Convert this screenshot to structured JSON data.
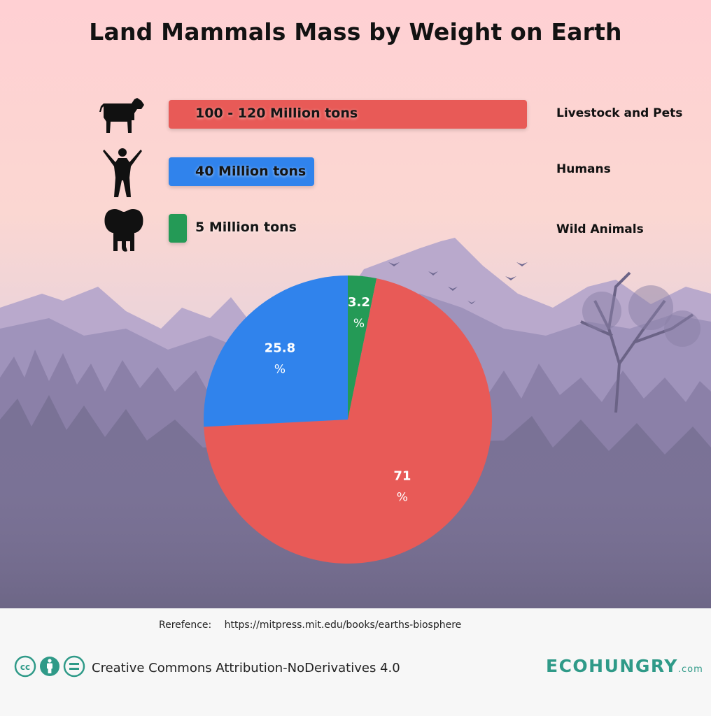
{
  "title": "Land Mammals Mass by Weight on Earth",
  "colors": {
    "livestock": "#E85A57",
    "humans": "#3083EC",
    "wild": "#249A56",
    "brand": "#2F9A88"
  },
  "bars": [
    {
      "name": "Livestock and Pets",
      "text": "100 - 120 Million tons",
      "icon": "cow-icon",
      "color": "#E85A57"
    },
    {
      "name": "Humans",
      "text": "40 Million tons",
      "icon": "person-icon",
      "color": "#3083EC"
    },
    {
      "name": "Wild Animals",
      "text": "5 Million tons",
      "icon": "elephant-icon",
      "color": "#249A56"
    }
  ],
  "chart_data": [
    {
      "type": "bar",
      "orientation": "horizontal",
      "categories": [
        "Livestock and Pets",
        "Humans",
        "Wild Animals"
      ],
      "values": [
        120,
        40,
        5
      ],
      "value_labels": [
        "100 - 120 Million tons",
        "40 Million tons",
        "5 Million tons"
      ],
      "unit": "Million tons"
    },
    {
      "type": "pie",
      "start_angle_deg": 0,
      "direction": "clockwise",
      "slices": [
        {
          "category": "Wild Animals",
          "value": 3.2,
          "label_value": "3.2",
          "label_unit": "%",
          "color": "#249A56"
        },
        {
          "category": "Livestock and Pets",
          "value": 71,
          "label_value": "71",
          "label_unit": "%",
          "color": "#E85A57"
        },
        {
          "category": "Humans",
          "value": 25.8,
          "label_value": "25.8",
          "label_unit": "%",
          "color": "#3083EC"
        }
      ]
    }
  ],
  "footer": {
    "reference_label": "Rerefence:",
    "reference_url": "https://mitpress.mit.edu/books/earths-biosphere",
    "license_icons": [
      "cc-icon",
      "attribution-icon",
      "no-derivatives-icon"
    ],
    "license_text": "Creative Commons Attribution-NoDerivatives 4.0",
    "brand_name": "ECOHUNGRY",
    "brand_suffix": ".com"
  }
}
